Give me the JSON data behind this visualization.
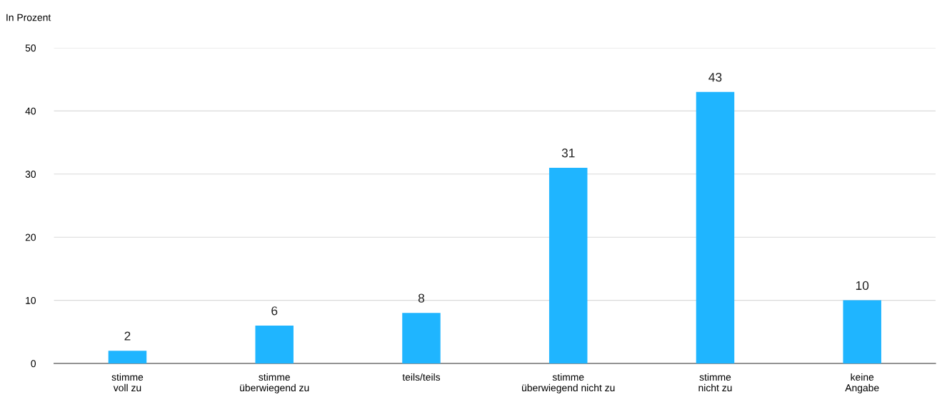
{
  "chart_data": {
    "type": "bar",
    "ylabel": "In Prozent",
    "categories": [
      "stimme\nvoll zu",
      "stimme\nüberwiegend zu",
      "teils/teils",
      "stimme\nüberwiegend nicht zu",
      "stimme\nnicht zu",
      "keine\nAngabe"
    ],
    "values": [
      2,
      6,
      8,
      31,
      43,
      10
    ],
    "color": "#1fb5ff",
    "ylim": [
      0,
      50
    ],
    "yticks": [
      0,
      10,
      20,
      30,
      40,
      50
    ],
    "grid": "y",
    "data_labels": true
  }
}
